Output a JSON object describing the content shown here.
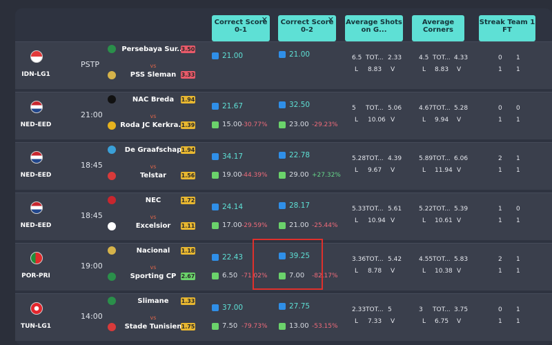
{
  "headers": [
    {
      "label": "Correct Score 0-1",
      "close": "✕"
    },
    {
      "label": "Correct Score 0-2",
      "close": "✕"
    },
    {
      "label": "Average Shots on G...",
      "close": ""
    },
    {
      "label": "Average Corners",
      "close": ""
    },
    {
      "label": "Streak Team 1 FT",
      "close": ""
    }
  ],
  "rows": [
    {
      "league": "IDN-LG1",
      "time": "PSTP",
      "home": "Persebaya Sur...",
      "away": "PSS Sleman",
      "vs": "vs",
      "home_odd": "3.50",
      "away_odd": "3.33",
      "cs01": "21.00",
      "cs01_b": "",
      "cs01_p": "",
      "cs02": "21.00",
      "cs02_b": "",
      "cs02_p": "",
      "shots": [
        "6.5",
        "TOT...",
        "2.33",
        "L",
        "8.83",
        "V"
      ],
      "corners": [
        "4.5",
        "TOT...",
        "4.33",
        "L",
        "8.83",
        "V"
      ],
      "streak": [
        "0",
        "1",
        "1",
        "1"
      ]
    },
    {
      "league": "NED-EED",
      "time": "21:00",
      "home": "NAC Breda",
      "away": "Roda JC Kerkra...",
      "vs": "vs",
      "home_odd": "1.94",
      "away_odd": "1.39",
      "cs01": "21.67",
      "cs01_b": "15.00",
      "cs01_p": "-30.77%",
      "cs02": "32.50",
      "cs02_b": "23.00",
      "cs02_p": "-29.23%",
      "shots": [
        "5",
        "TOT...",
        "5.06",
        "L",
        "10.06",
        "V"
      ],
      "corners": [
        "4.67",
        "TOT...",
        "5.28",
        "L",
        "9.94",
        "V"
      ],
      "streak": [
        "0",
        "0",
        "1",
        "1"
      ]
    },
    {
      "league": "NED-EED",
      "time": "18:45",
      "home": "De Graafschap",
      "away": "Telstar",
      "vs": "vs",
      "home_odd": "1.94",
      "away_odd": "1.56",
      "cs01": "34.17",
      "cs01_b": "19.00",
      "cs01_p": "-44.39%",
      "cs02": "22.78",
      "cs02_b": "29.00",
      "cs02_p": "+27.32%",
      "shots": [
        "5.28",
        "TOT...",
        "4.39",
        "L",
        "9.67",
        "V"
      ],
      "corners": [
        "5.89",
        "TOT...",
        "6.06",
        "L",
        "11.94",
        "V"
      ],
      "streak": [
        "2",
        "1",
        "1",
        "1"
      ]
    },
    {
      "league": "NED-EED",
      "time": "18:45",
      "home": "NEC",
      "away": "Excelsior",
      "vs": "vs",
      "home_odd": "1.72",
      "away_odd": "1.11",
      "cs01": "24.14",
      "cs01_b": "17.00",
      "cs01_p": "-29.59%",
      "cs02": "28.17",
      "cs02_b": "21.00",
      "cs02_p": "-25.44%",
      "shots": [
        "5.33",
        "TOT...",
        "5.61",
        "L",
        "10.94",
        "V"
      ],
      "corners": [
        "5.22",
        "TOT...",
        "5.39",
        "L",
        "10.61",
        "V"
      ],
      "streak": [
        "1",
        "0",
        "1",
        "1"
      ]
    },
    {
      "league": "POR-PRI",
      "time": "19:00",
      "home": "Nacional",
      "away": "Sporting CP",
      "vs": "vs",
      "home_odd": "1.18",
      "away_odd": "2.67",
      "cs01": "22.43",
      "cs01_b": "6.50",
      "cs01_p": "-71.02%",
      "cs02": "39.25",
      "cs02_b": "7.00",
      "cs02_p": "-82.17%",
      "shots": [
        "3.36",
        "TOT...",
        "5.42",
        "L",
        "8.78",
        "V"
      ],
      "corners": [
        "4.55",
        "TOT...",
        "5.83",
        "L",
        "10.38",
        "V"
      ],
      "streak": [
        "2",
        "1",
        "1",
        "1"
      ]
    },
    {
      "league": "TUN-LG1",
      "time": "14:00",
      "home": "Slimane",
      "away": "Stade Tunisien",
      "vs": "vs",
      "home_odd": "1.33",
      "away_odd": "1.75",
      "cs01": "37.00",
      "cs01_b": "7.50",
      "cs01_p": "-79.73%",
      "cs02": "27.75",
      "cs02_b": "13.00",
      "cs02_p": "-53.15%",
      "shots": [
        "2.33",
        "TOT...",
        "5",
        "L",
        "7.33",
        "V"
      ],
      "corners": [
        "3",
        "TOT...",
        "3.75",
        "L",
        "6.75",
        "V"
      ],
      "streak": [
        "0",
        "1",
        "1",
        "1"
      ]
    }
  ]
}
